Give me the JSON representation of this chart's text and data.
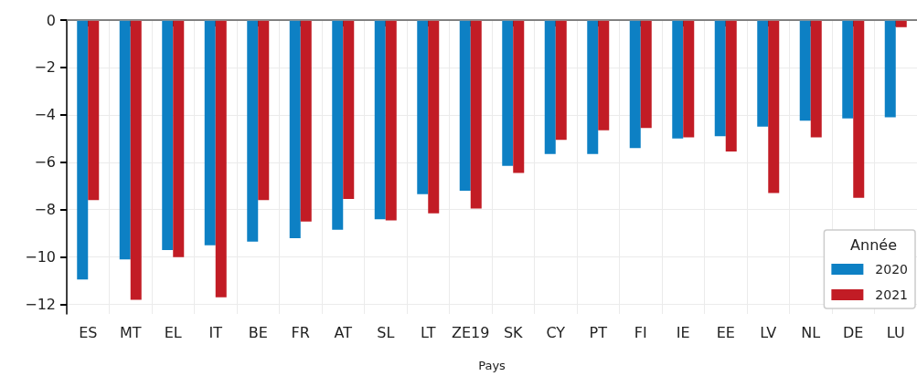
{
  "chart_data": {
    "type": "bar",
    "xlabel": "Pays",
    "legend_title": "Année",
    "categories": [
      "ES",
      "MT",
      "EL",
      "IT",
      "BE",
      "FR",
      "AT",
      "SL",
      "LT",
      "ZE19",
      "SK",
      "CY",
      "PT",
      "FI",
      "IE",
      "EE",
      "LV",
      "NL",
      "DE",
      "LU"
    ],
    "series": [
      {
        "name": "2020",
        "color": "#0d80c4",
        "values": [
          -10.95,
          -10.1,
          -9.7,
          -9.5,
          -9.35,
          -9.2,
          -8.85,
          -8.4,
          -7.35,
          -7.2,
          -6.15,
          -5.65,
          -5.65,
          -5.4,
          -5.0,
          -4.9,
          -4.5,
          -4.25,
          -4.15,
          -4.1
        ]
      },
      {
        "name": "2021",
        "color": "#c21c25",
        "values": [
          -7.6,
          -11.8,
          -10.0,
          -11.7,
          -7.6,
          -8.5,
          -7.55,
          -8.45,
          -8.15,
          -7.95,
          -6.45,
          -5.05,
          -4.65,
          -4.55,
          -4.95,
          -5.55,
          -7.3,
          -4.95,
          -7.5,
          -0.3
        ]
      }
    ],
    "ylim": [
      -12.4,
      0
    ],
    "yticks": [
      0,
      {
        "value": -2,
        "label": "−2"
      },
      {
        "value": -4,
        "label": "−4"
      },
      {
        "value": -6,
        "label": "−6"
      },
      {
        "value": -8,
        "label": "−8"
      },
      {
        "value": -10,
        "label": "−10"
      },
      {
        "value": -12,
        "label": "−12"
      }
    ],
    "ref_lines": [
      {
        "axis": "y",
        "value": 0,
        "color": "#999999"
      }
    ],
    "grid": true,
    "legend": "bottom right"
  }
}
